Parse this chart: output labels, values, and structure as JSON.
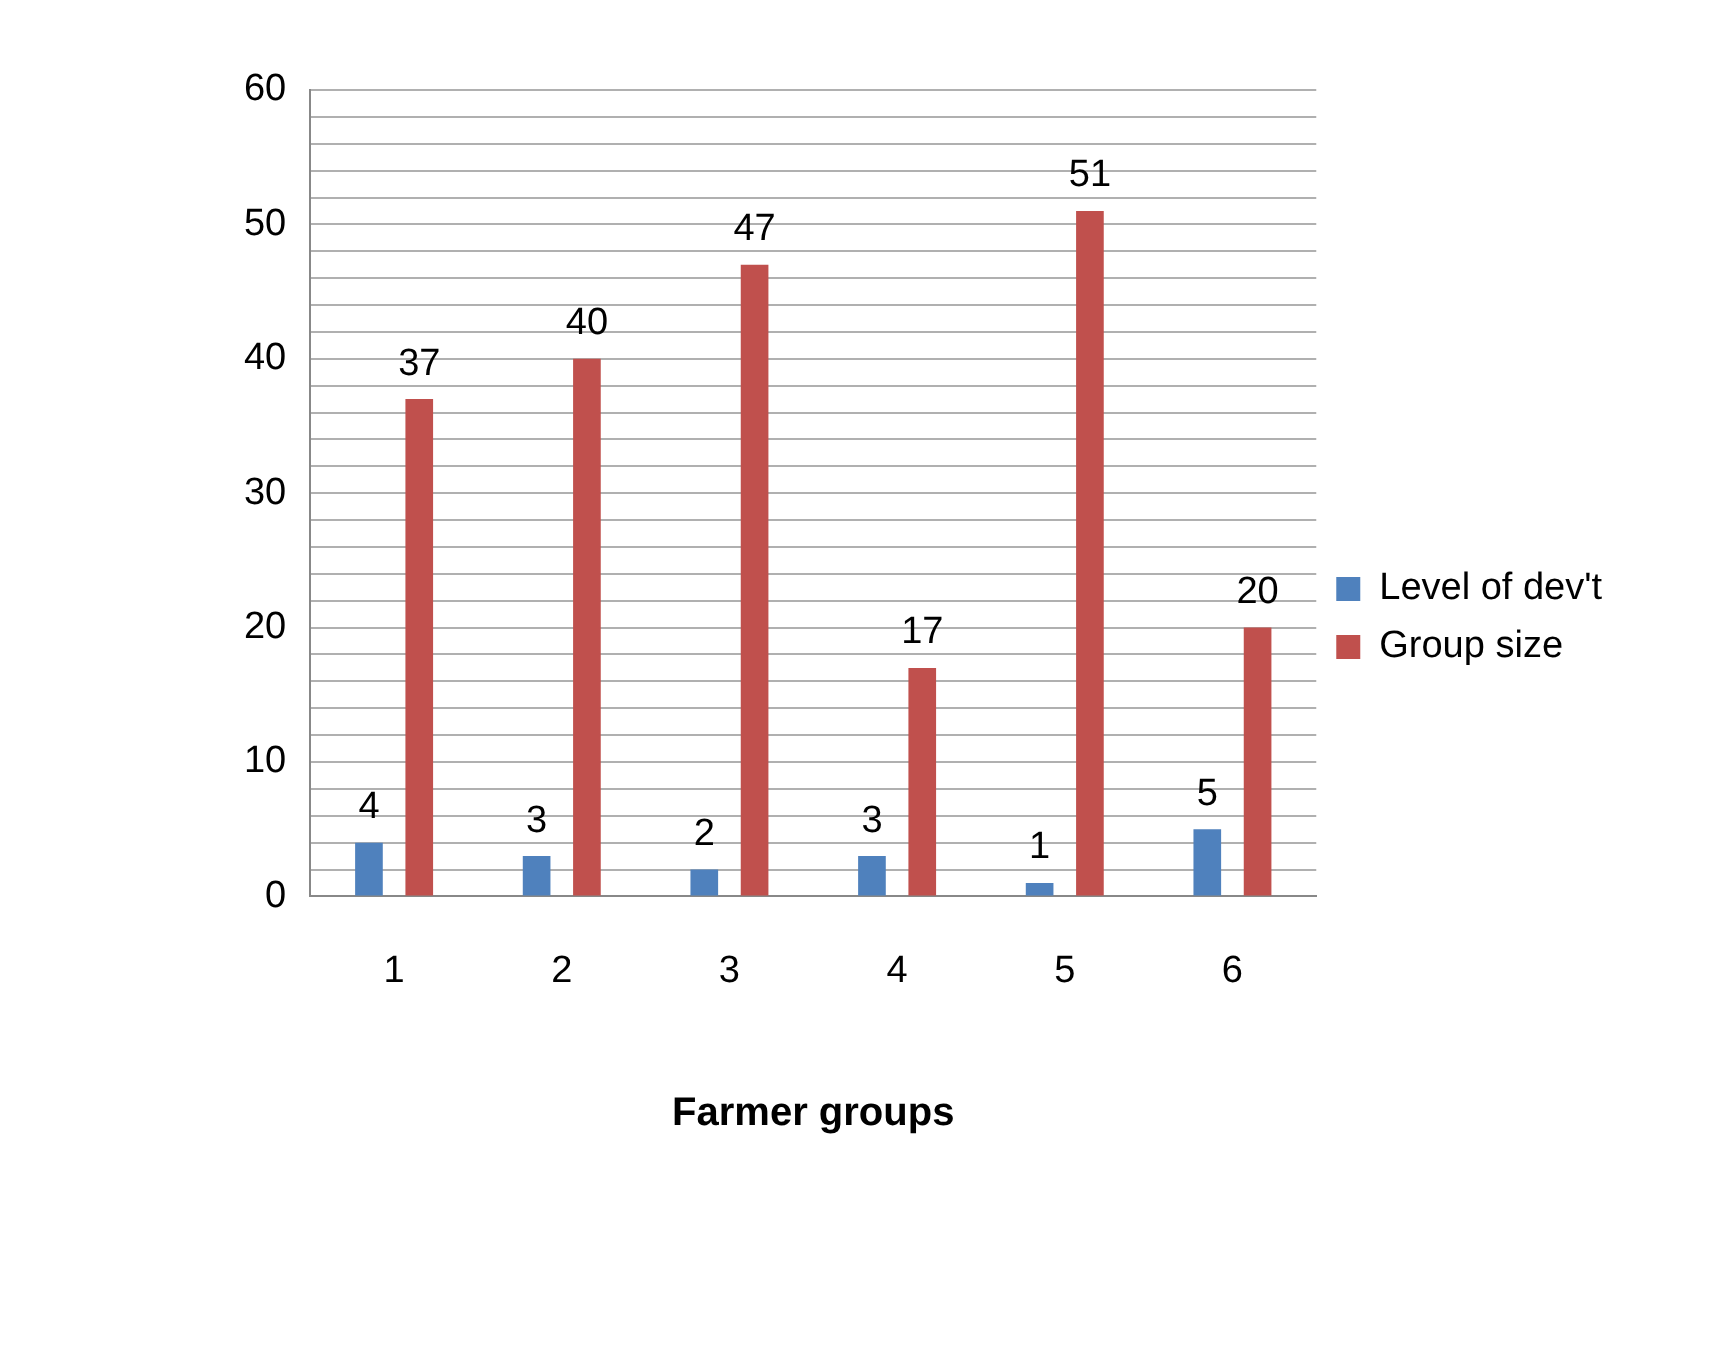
{
  "chart_data": {
    "type": "bar",
    "xlabel": "Farmer groups",
    "categories": [
      "1",
      "2",
      "3",
      "4",
      "5",
      "6"
    ],
    "series": [
      {
        "name": "Level of dev't",
        "color": "#4f81bd",
        "values": [
          4,
          3,
          2,
          3,
          1,
          5
        ]
      },
      {
        "name": "Group size",
        "color": "#c0504d",
        "values": [
          37,
          40,
          47,
          17,
          51,
          20
        ]
      }
    ],
    "ylim": [
      0,
      60
    ],
    "yticks": [
      0,
      {
        "value": 2,
        "label": null
      },
      {
        "value": 4,
        "label": null
      },
      {
        "value": 6,
        "label": null
      },
      {
        "value": 8,
        "label": null
      },
      10,
      {
        "value": 12,
        "label": null
      },
      {
        "value": 14,
        "label": null
      },
      {
        "value": 16,
        "label": null
      },
      {
        "value": 18,
        "label": null
      },
      20,
      {
        "value": 22,
        "label": null
      },
      {
        "value": 24,
        "label": null
      },
      {
        "value": 26,
        "label": null
      },
      {
        "value": 28,
        "label": null
      },
      30,
      {
        "value": 32,
        "label": null
      },
      {
        "value": 34,
        "label": null
      },
      {
        "value": 36,
        "label": null
      },
      {
        "value": 38,
        "label": null
      },
      40,
      {
        "value": 42,
        "label": null
      },
      {
        "value": 44,
        "label": null
      },
      {
        "value": 46,
        "label": null
      },
      {
        "value": 48,
        "label": null
      },
      50,
      {
        "value": 52,
        "label": null
      },
      {
        "value": 54,
        "label": null
      },
      {
        "value": 56,
        "label": null
      },
      {
        "value": 58,
        "label": null
      },
      60
    ],
    "grid": "y",
    "legend": "right",
    "data_labels": true
  }
}
